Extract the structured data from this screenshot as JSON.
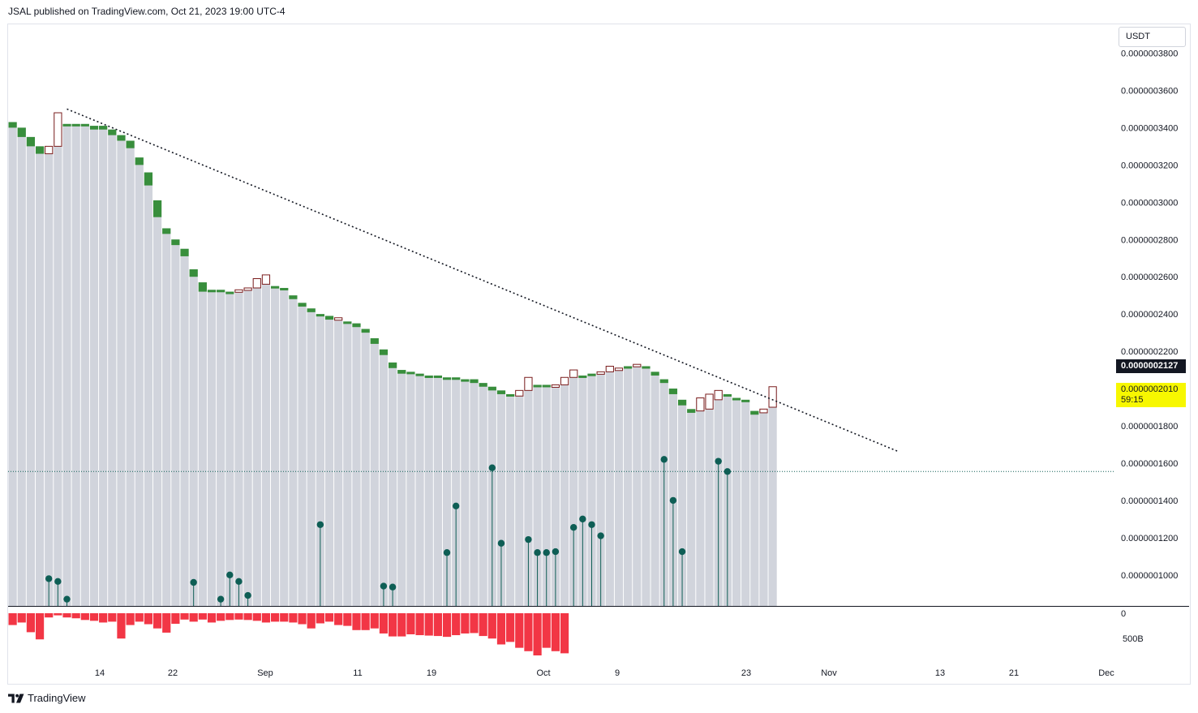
{
  "header": {
    "text": "JSAL published on TradingView.com, Oct 21, 2023 19:00 UTC-4"
  },
  "footer": {
    "brand": "TradingView",
    "logo_icon": "tradingview-logo-icon"
  },
  "price_axis": {
    "currency_label": "USDT",
    "ticks": [
      "0.0000003800",
      "0.0000003600",
      "0.0000003400",
      "0.0000003200",
      "0.0000003000",
      "0.0000002800",
      "0.0000002600",
      "0.0000002400",
      "0.0000002200",
      "0.0000001800",
      "0.0000001600",
      "0.0000001400",
      "0.0000001200",
      "0.0000001000"
    ],
    "last_close_tag": "0.0000002127",
    "current_price_tag": "0.0000002010",
    "countdown": "59:15"
  },
  "volume_axis": {
    "ticks": [
      "0",
      "500B"
    ]
  },
  "time_axis": {
    "ticks": [
      "14",
      "22",
      "Sep",
      "11",
      "19",
      "Oct",
      "9",
      "23",
      "Nov",
      "13",
      "21",
      "Dec"
    ]
  },
  "colors": {
    "body_gray": "#d1d4dc",
    "bull": "#388e3c",
    "bear_outline": "#7b1d1d",
    "volume": "#f23645",
    "lollipop": "#0e5e55",
    "trendline": "#131722"
  },
  "chart_data": {
    "type": "candlestick",
    "x_axis": "date (Aug 2023 – Dec 2023)",
    "ylim": [
      8.5e-08,
      3.91e-07
    ],
    "trendline": {
      "from": [
        6,
        3.5e-07
      ],
      "to": [
        98,
        1.66e-07
      ],
      "style": "dotted"
    },
    "support_level": 1.555e-07,
    "candles": [
      {
        "o": 3.43e-07,
        "c": 3.4e-07
      },
      {
        "o": 3.4e-07,
        "c": 3.35e-07
      },
      {
        "o": 3.35e-07,
        "c": 3.3e-07
      },
      {
        "o": 3.3e-07,
        "c": 3.26e-07
      },
      {
        "o": 3.26e-07,
        "c": 3.3e-07
      },
      {
        "o": 3.3e-07,
        "c": 3.48e-07
      },
      {
        "o": 3.42e-07,
        "c": 3.42e-07
      },
      {
        "o": 3.42e-07,
        "c": 3.42e-07
      },
      {
        "o": 3.42e-07,
        "c": 3.41e-07
      },
      {
        "o": 3.41e-07,
        "c": 3.39e-07
      },
      {
        "o": 3.41e-07,
        "c": 3.39e-07
      },
      {
        "o": 3.39e-07,
        "c": 3.36e-07
      },
      {
        "o": 3.36e-07,
        "c": 3.33e-07
      },
      {
        "o": 3.33e-07,
        "c": 3.29e-07
      },
      {
        "o": 3.24e-07,
        "c": 3.2e-07
      },
      {
        "o": 3.16e-07,
        "c": 3.09e-07
      },
      {
        "o": 3.01e-07,
        "c": 2.92e-07
      },
      {
        "o": 2.86e-07,
        "c": 2.83e-07
      },
      {
        "o": 2.8e-07,
        "c": 2.77e-07
      },
      {
        "o": 2.75e-07,
        "c": 2.71e-07
      },
      {
        "o": 2.64e-07,
        "c": 2.6e-07
      },
      {
        "o": 2.57e-07,
        "c": 2.52e-07
      },
      {
        "o": 2.53e-07,
        "c": 2.53e-07
      },
      {
        "o": 2.53e-07,
        "c": 2.53e-07
      },
      {
        "o": 2.52e-07,
        "c": 2.52e-07
      },
      {
        "o": 2.52e-07,
        "c": 2.53e-07
      },
      {
        "o": 2.53e-07,
        "c": 2.54e-07
      },
      {
        "o": 2.54e-07,
        "c": 2.59e-07
      },
      {
        "o": 2.56e-07,
        "c": 2.61e-07
      },
      {
        "o": 2.55e-07,
        "c": 2.55e-07
      },
      {
        "o": 2.54e-07,
        "c": 2.54e-07
      },
      {
        "o": 2.5e-07,
        "c": 2.48e-07
      },
      {
        "o": 2.46e-07,
        "c": 2.44e-07
      },
      {
        "o": 2.43e-07,
        "c": 2.41e-07
      },
      {
        "o": 2.4e-07,
        "c": 2.39e-07
      },
      {
        "o": 2.39e-07,
        "c": 2.37e-07
      },
      {
        "o": 2.37e-07,
        "c": 2.38e-07
      },
      {
        "o": 2.36e-07,
        "c": 2.36e-07
      },
      {
        "o": 2.35e-07,
        "c": 2.33e-07
      },
      {
        "o": 2.32e-07,
        "c": 2.3e-07
      },
      {
        "o": 2.27e-07,
        "c": 2.24e-07
      },
      {
        "o": 2.21e-07,
        "c": 2.18e-07
      },
      {
        "o": 2.14e-07,
        "c": 2.11e-07
      },
      {
        "o": 2.1e-07,
        "c": 2.08e-07
      },
      {
        "o": 2.09e-07,
        "c": 2.09e-07
      },
      {
        "o": 2.08e-07,
        "c": 2.08e-07
      },
      {
        "o": 2.07e-07,
        "c": 2.07e-07
      },
      {
        "o": 2.07e-07,
        "c": 2.06e-07
      },
      {
        "o": 2.06e-07,
        "c": 2.06e-07
      },
      {
        "o": 2.06e-07,
        "c": 2.05e-07
      },
      {
        "o": 2.05e-07,
        "c": 2.05e-07
      },
      {
        "o": 2.05e-07,
        "c": 2.03e-07
      },
      {
        "o": 2.03e-07,
        "c": 2.01e-07
      },
      {
        "o": 2.01e-07,
        "c": 1.99e-07
      },
      {
        "o": 1.99e-07,
        "c": 1.97e-07
      },
      {
        "o": 1.97e-07,
        "c": 1.96e-07
      },
      {
        "o": 1.96e-07,
        "c": 1.99e-07
      },
      {
        "o": 1.99e-07,
        "c": 2.06e-07
      },
      {
        "o": 2.02e-07,
        "c": 2.02e-07
      },
      {
        "o": 2.02e-07,
        "c": 2.02e-07
      },
      {
        "o": 2.01e-07,
        "c": 2.02e-07
      },
      {
        "o": 2.02e-07,
        "c": 2.06e-07
      },
      {
        "o": 2.06e-07,
        "c": 2.1e-07
      },
      {
        "o": 2.07e-07,
        "c": 2.07e-07
      },
      {
        "o": 2.08e-07,
        "c": 2.08e-07
      },
      {
        "o": 2.08e-07,
        "c": 2.09e-07
      },
      {
        "o": 2.09e-07,
        "c": 2.12e-07
      },
      {
        "o": 2.1e-07,
        "c": 2.11e-07
      },
      {
        "o": 2.12e-07,
        "c": 2.12e-07
      },
      {
        "o": 2.12e-07,
        "c": 2.13e-07
      },
      {
        "o": 2.12e-07,
        "c": 2.11e-07
      },
      {
        "o": 2.09e-07,
        "c": 2.07e-07
      },
      {
        "o": 2.05e-07,
        "c": 2.03e-07
      },
      {
        "o": 2e-07,
        "c": 1.97e-07
      },
      {
        "o": 1.94e-07,
        "c": 1.91e-07
      },
      {
        "o": 1.89e-07,
        "c": 1.87e-07
      },
      {
        "o": 1.88e-07,
        "c": 1.95e-07
      },
      {
        "o": 1.89e-07,
        "c": 1.97e-07
      },
      {
        "o": 1.94e-07,
        "c": 1.99e-07
      },
      {
        "o": 1.97e-07,
        "c": 1.97e-07
      },
      {
        "o": 1.95e-07,
        "c": 1.95e-07
      },
      {
        "o": 1.94e-07,
        "c": 1.94e-07
      },
      {
        "o": 1.88e-07,
        "c": 1.86e-07
      },
      {
        "o": 1.87e-07,
        "c": 1.89e-07
      },
      {
        "o": 1.9e-07,
        "c": 2.01e-07
      }
    ],
    "lows": [
      {
        "i": 4,
        "v": 9.8e-08
      },
      {
        "i": 5,
        "v": 9.65e-08
      },
      {
        "i": 6,
        "v": 8.7e-08
      },
      {
        "i": 20,
        "v": 9.6e-08
      },
      {
        "i": 23,
        "v": 8.7e-08
      },
      {
        "i": 24,
        "v": 1e-07
      },
      {
        "i": 25,
        "v": 9.65e-08
      },
      {
        "i": 26,
        "v": 8.9e-08
      },
      {
        "i": 34,
        "v": 1.27e-07
      },
      {
        "i": 41,
        "v": 9.4e-08
      },
      {
        "i": 42,
        "v": 9.35e-08
      },
      {
        "i": 48,
        "v": 1.12e-07
      },
      {
        "i": 49,
        "v": 1.37e-07
      },
      {
        "i": 53,
        "v": 1.575e-07
      },
      {
        "i": 54,
        "v": 1.17e-07
      },
      {
        "i": 57,
        "v": 1.19e-07
      },
      {
        "i": 58,
        "v": 1.12e-07
      },
      {
        "i": 59,
        "v": 1.12e-07
      },
      {
        "i": 60,
        "v": 1.125e-07
      },
      {
        "i": 62,
        "v": 1.255e-07
      },
      {
        "i": 63,
        "v": 1.3e-07
      },
      {
        "i": 64,
        "v": 1.27e-07
      },
      {
        "i": 65,
        "v": 1.21e-07
      },
      {
        "i": 72,
        "v": 1.62e-07
      },
      {
        "i": 73,
        "v": 1.4e-07
      },
      {
        "i": 74,
        "v": 1.125e-07
      },
      {
        "i": 78,
        "v": 1.61e-07
      },
      {
        "i": 79,
        "v": 1.555e-07
      }
    ],
    "volume": [
      0.28,
      0.22,
      0.45,
      0.62,
      0.1,
      0.05,
      0.1,
      0.12,
      0.16,
      0.18,
      0.22,
      0.2,
      0.6,
      0.28,
      0.2,
      0.26,
      0.36,
      0.46,
      0.25,
      0.15,
      0.2,
      0.15,
      0.22,
      0.18,
      0.16,
      0.15,
      0.16,
      0.18,
      0.22,
      0.2,
      0.2,
      0.22,
      0.26,
      0.36,
      0.24,
      0.2,
      0.28,
      0.3,
      0.4,
      0.4,
      0.36,
      0.48,
      0.55,
      0.55,
      0.5,
      0.52,
      0.53,
      0.54,
      0.56,
      0.52,
      0.48,
      0.47,
      0.54,
      0.6,
      0.74,
      0.68,
      0.82,
      0.9,
      1.0,
      0.82,
      0.9,
      0.95
    ]
  }
}
